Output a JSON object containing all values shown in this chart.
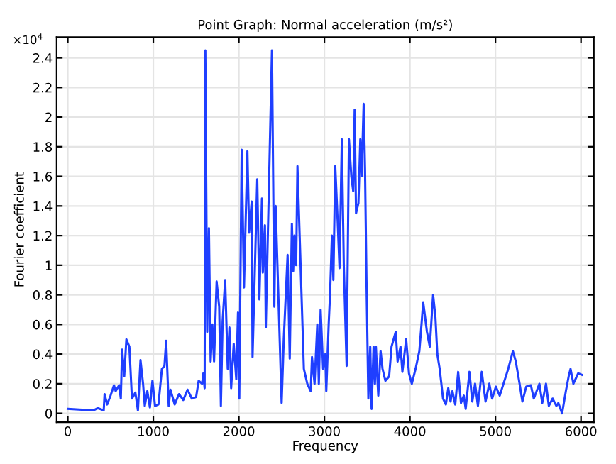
{
  "chart_data": {
    "type": "line",
    "title": "Point Graph: Normal acceleration (m/s²)",
    "xlabel": "Frequency",
    "ylabel": "Fourier coefficient",
    "annotations": [
      "×10$^{4}$"
    ],
    "xlim": [
      -130,
      6150
    ],
    "ylim": [
      -0.06,
      2.54
    ],
    "xticks": [
      0,
      1000,
      2000,
      3000,
      4000,
      5000,
      6000
    ],
    "yticks": [
      0,
      0.2,
      0.4,
      0.6,
      0.8,
      1,
      1.2,
      1.4,
      1.6,
      1.8,
      2,
      2.2,
      2.4
    ],
    "grid": true,
    "line_style": "solid",
    "series": [
      {
        "color": "#1f3fff",
        "x": [
          0,
          300,
          350,
          420,
          430,
          460,
          500,
          540,
          560,
          600,
          620,
          635,
          660,
          685,
          720,
          750,
          790,
          820,
          850,
          880,
          900,
          930,
          960,
          990,
          1020,
          1060,
          1100,
          1130,
          1150,
          1180,
          1200,
          1250,
          1300,
          1350,
          1400,
          1450,
          1500,
          1530,
          1570,
          1585,
          1600,
          1608,
          1630,
          1650,
          1670,
          1690,
          1710,
          1740,
          1770,
          1790,
          1810,
          1840,
          1870,
          1890,
          1910,
          1940,
          1970,
          1990,
          2005,
          2033,
          2060,
          2100,
          2120,
          2150,
          2160,
          2215,
          2240,
          2270,
          2280,
          2305,
          2315,
          2387,
          2415,
          2430,
          2500,
          2525,
          2570,
          2595,
          2620,
          2635,
          2650,
          2670,
          2685,
          2760,
          2800,
          2840,
          2855,
          2885,
          2917,
          2935,
          2956,
          2985,
          3011,
          3022,
          3050,
          3066,
          3088,
          3105,
          3127,
          3155,
          3177,
          3204,
          3227,
          3260,
          3287,
          3315,
          3337,
          3354,
          3370,
          3398,
          3420,
          3436,
          3459,
          3475,
          3492,
          3514,
          3536,
          3552,
          3575,
          3591,
          3602,
          3630,
          3657,
          3680,
          3713,
          3757,
          3785,
          3834,
          3856,
          3890,
          3912,
          3956,
          3989,
          4022,
          4066,
          4110,
          4138,
          4155,
          4199,
          4232,
          4271,
          4298,
          4320,
          4348,
          4387,
          4420,
          4448,
          4475,
          4497,
          4530,
          4564,
          4597,
          4630,
          4652,
          4696,
          4729,
          4762,
          4795,
          4840,
          4884,
          4928,
          4961,
          5005,
          5050,
          5094,
          5149,
          5204,
          5238,
          5282,
          5315,
          5359,
          5414,
          5448,
          5514,
          5547,
          5591,
          5624,
          5668,
          5712,
          5735,
          5779,
          5823,
          5856,
          5878,
          5911,
          5967,
          6011
        ],
        "values": [
          0.03,
          0.02,
          0.035,
          0.02,
          0.13,
          0.06,
          0.12,
          0.19,
          0.15,
          0.19,
          0.1,
          0.43,
          0.25,
          0.5,
          0.45,
          0.1,
          0.14,
          0.02,
          0.36,
          0.2,
          0.05,
          0.15,
          0.04,
          0.22,
          0.05,
          0.06,
          0.3,
          0.32,
          0.49,
          0.05,
          0.16,
          0.06,
          0.13,
          0.09,
          0.16,
          0.1,
          0.11,
          0.22,
          0.2,
          0.27,
          0.17,
          2.45,
          0.55,
          1.25,
          0.35,
          0.6,
          0.35,
          0.89,
          0.72,
          0.05,
          0.62,
          0.9,
          0.3,
          0.58,
          0.17,
          0.47,
          0.23,
          0.68,
          0.1,
          1.78,
          0.85,
          1.77,
          1.22,
          1.43,
          0.38,
          1.58,
          0.77,
          1.45,
          0.95,
          1.27,
          0.58,
          2.45,
          0.72,
          1.4,
          0.07,
          0.5,
          1.07,
          0.37,
          1.28,
          0.96,
          1.2,
          1.0,
          1.67,
          0.3,
          0.2,
          0.15,
          0.38,
          0.2,
          0.6,
          0.2,
          0.7,
          0.3,
          0.4,
          0.15,
          0.6,
          0.8,
          1.2,
          0.9,
          1.67,
          1.3,
          0.98,
          1.85,
          1.0,
          0.32,
          1.85,
          1.6,
          1.5,
          2.05,
          1.35,
          1.42,
          1.85,
          1.6,
          2.09,
          1.65,
          0.9,
          0.1,
          0.45,
          0.03,
          0.45,
          0.2,
          0.45,
          0.12,
          0.42,
          0.3,
          0.22,
          0.25,
          0.45,
          0.55,
          0.35,
          0.45,
          0.28,
          0.5,
          0.27,
          0.2,
          0.3,
          0.42,
          0.62,
          0.75,
          0.55,
          0.45,
          0.8,
          0.65,
          0.4,
          0.3,
          0.1,
          0.06,
          0.17,
          0.08,
          0.15,
          0.06,
          0.28,
          0.07,
          0.12,
          0.03,
          0.28,
          0.08,
          0.2,
          0.05,
          0.28,
          0.08,
          0.2,
          0.1,
          0.18,
          0.12,
          0.2,
          0.3,
          0.42,
          0.35,
          0.2,
          0.08,
          0.18,
          0.19,
          0.1,
          0.2,
          0.07,
          0.2,
          0.05,
          0.1,
          0.05,
          0.07,
          0.0,
          0.15,
          0.25,
          0.3,
          0.2,
          0.27,
          0.26
        ]
      }
    ]
  }
}
